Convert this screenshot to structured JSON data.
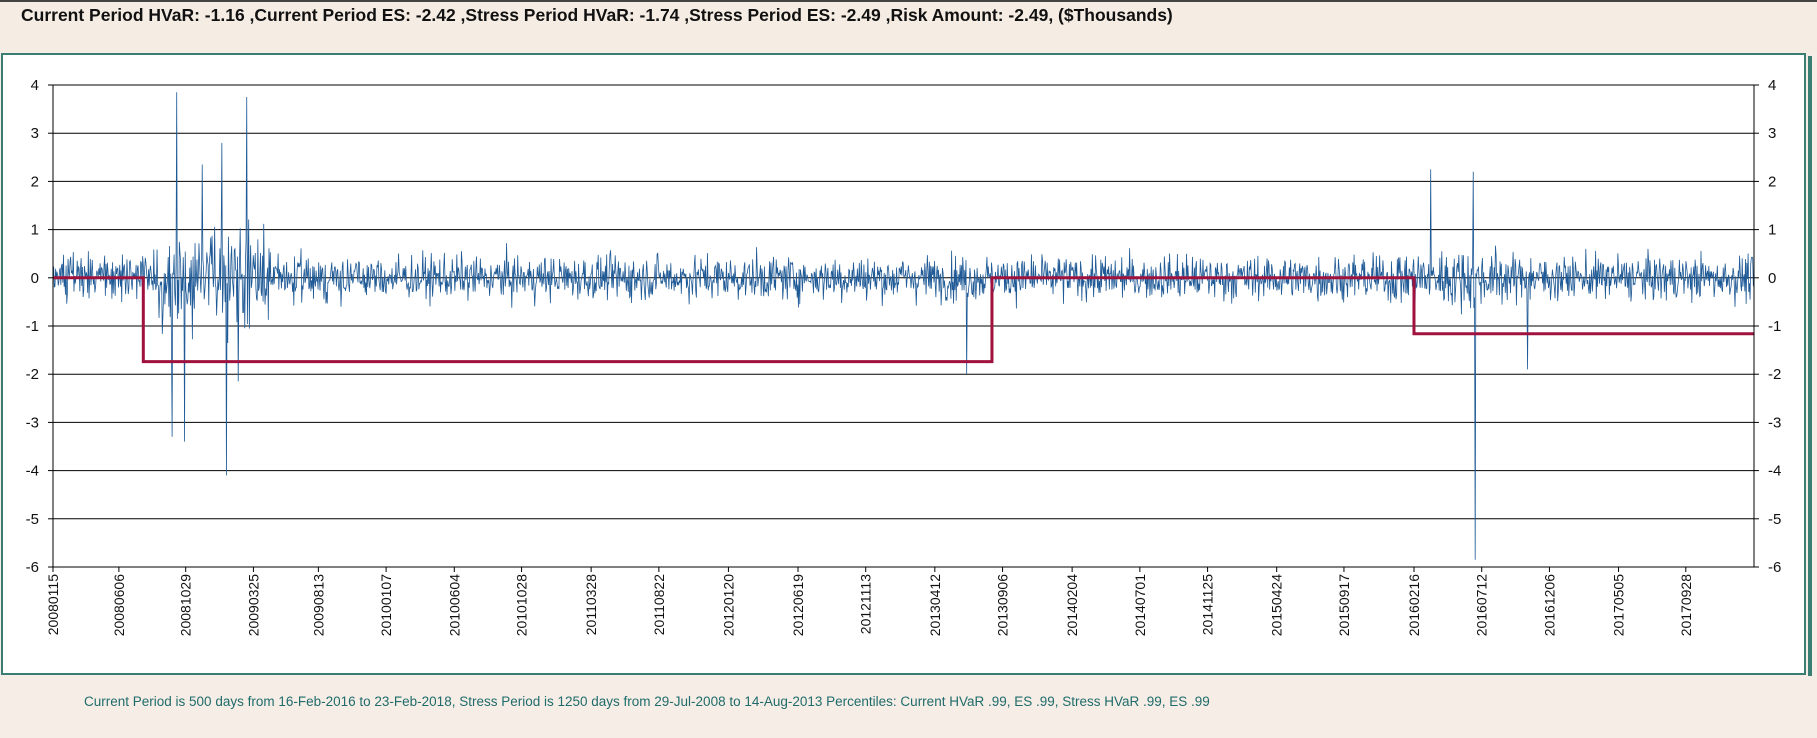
{
  "header": {
    "summary": "Current Period HVaR: -1.16  ,Current Period ES: -2.42  ,Stress Period HVaR: -1.74  ,Stress Period ES: -2.49  ,Risk Amount: -2.49, ($Thousands)"
  },
  "footer": {
    "note": "Current Period is 500 days from 16-Feb-2016 to 23-Feb-2018, Stress Period is 1250 days from 29-Jul-2008 to 14-Aug-2013   Percentiles:  Current HVaR .99,   ES .99,   Stress HVaR .99,   ES .99"
  },
  "colors": {
    "pnl_series": "#1f5a96",
    "hvar_line": "#a0123e",
    "grid": "#000000"
  },
  "chart_data": {
    "type": "line",
    "title": "",
    "xlabel": "",
    "ylabel": "",
    "ylim": [
      -6,
      4
    ],
    "y_ticks": [
      4,
      3,
      2,
      1,
      0,
      -1,
      -2,
      -3,
      -4,
      -5,
      -6
    ],
    "grid": "horizontal",
    "x_range": [
      "20080115",
      "20180223"
    ],
    "x_tick_labels": [
      "20080115",
      "20080606",
      "20081029",
      "20090325",
      "20090813",
      "20100107",
      "20100604",
      "20101028",
      "20110328",
      "20110822",
      "20120120",
      "20120619",
      "20121113",
      "20130412",
      "20130906",
      "20140204",
      "20140701",
      "20141125",
      "20150424",
      "20150917",
      "20160216",
      "20160712",
      "20161206",
      "20170505",
      "20170928"
    ],
    "series": [
      {
        "kind": "daily_pnl",
        "x_start": "20080115",
        "x_end": "20180223",
        "typical_range": [
          -1,
          1
        ],
        "notable_points": [
          {
            "x": "20080930",
            "y": -3.3
          },
          {
            "x": "20081010",
            "y": 3.85
          },
          {
            "x": "20081027",
            "y": -3.4
          },
          {
            "x": "20081204",
            "y": 2.35
          },
          {
            "x": "20090115",
            "y": 2.8
          },
          {
            "x": "20090126",
            "y": -4.1
          },
          {
            "x": "20090220",
            "y": -2.15
          },
          {
            "x": "20090310",
            "y": 3.75
          },
          {
            "x": "20130620",
            "y": -2.0
          },
          {
            "x": "20160323",
            "y": 2.25
          },
          {
            "x": "20160624",
            "y": 2.2
          },
          {
            "x": "20160628",
            "y": -5.85
          },
          {
            "x": "20161020",
            "y": -1.9
          }
        ]
      },
      {
        "kind": "hvar_step",
        "steps": [
          {
            "from": "20080115",
            "to": "20080729",
            "y": 0
          },
          {
            "from": "20080729",
            "to": "20130814",
            "y": -1.74
          },
          {
            "from": "20130814",
            "to": "20160216",
            "y": 0
          },
          {
            "from": "20160216",
            "to": "20180223",
            "y": -1.16
          }
        ]
      }
    ]
  }
}
